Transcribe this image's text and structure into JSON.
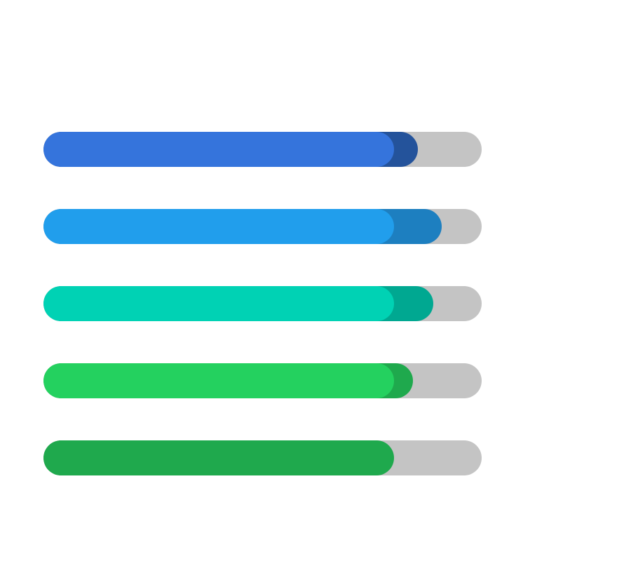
{
  "progress_bars": [
    {
      "primary": 0.8,
      "secondary": 0.855,
      "primary_color": "#3574dc",
      "secondary_color": "#24539b",
      "track_color": "#c4c4c4"
    },
    {
      "primary": 0.8,
      "secondary": 0.908,
      "primary_color": "#219eec",
      "secondary_color": "#1d7fc0",
      "track_color": "#c4c4c4"
    },
    {
      "primary": 0.8,
      "secondary": 0.89,
      "primary_color": "#00d2b4",
      "secondary_color": "#00a891",
      "track_color": "#c4c4c4"
    },
    {
      "primary": 0.8,
      "secondary": 0.843,
      "primary_color": "#24d15f",
      "secondary_color": "#1fa94d",
      "track_color": "#c4c4c4"
    },
    {
      "primary": 0.8,
      "secondary": 0.795,
      "primary_color": "#1fa94d",
      "secondary_color": "#1b8f40",
      "track_color": "#c4c4c4"
    }
  ]
}
